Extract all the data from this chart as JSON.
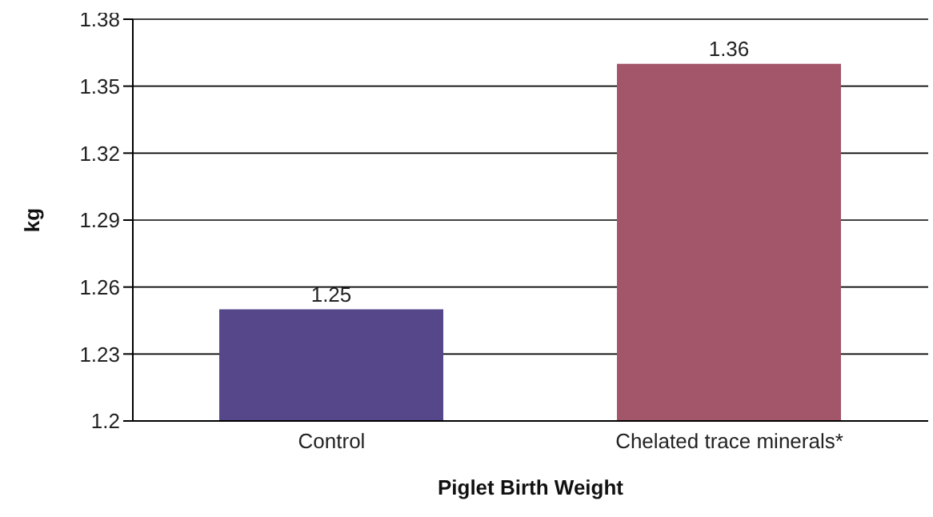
{
  "chart_data": {
    "type": "bar",
    "xlabel": "Piglet Birth Weight",
    "ylabel": "kg",
    "categories": [
      "Control",
      "Chelated trace minerals*"
    ],
    "values": [
      1.25,
      1.36
    ],
    "colors": [
      "#56468a",
      "#a3566a"
    ],
    "ylim": [
      1.2,
      1.38
    ],
    "yticks": [
      1.2,
      1.23,
      1.26,
      1.29,
      1.32,
      1.35,
      1.38
    ],
    "grid": "y",
    "data_labels": true
  }
}
